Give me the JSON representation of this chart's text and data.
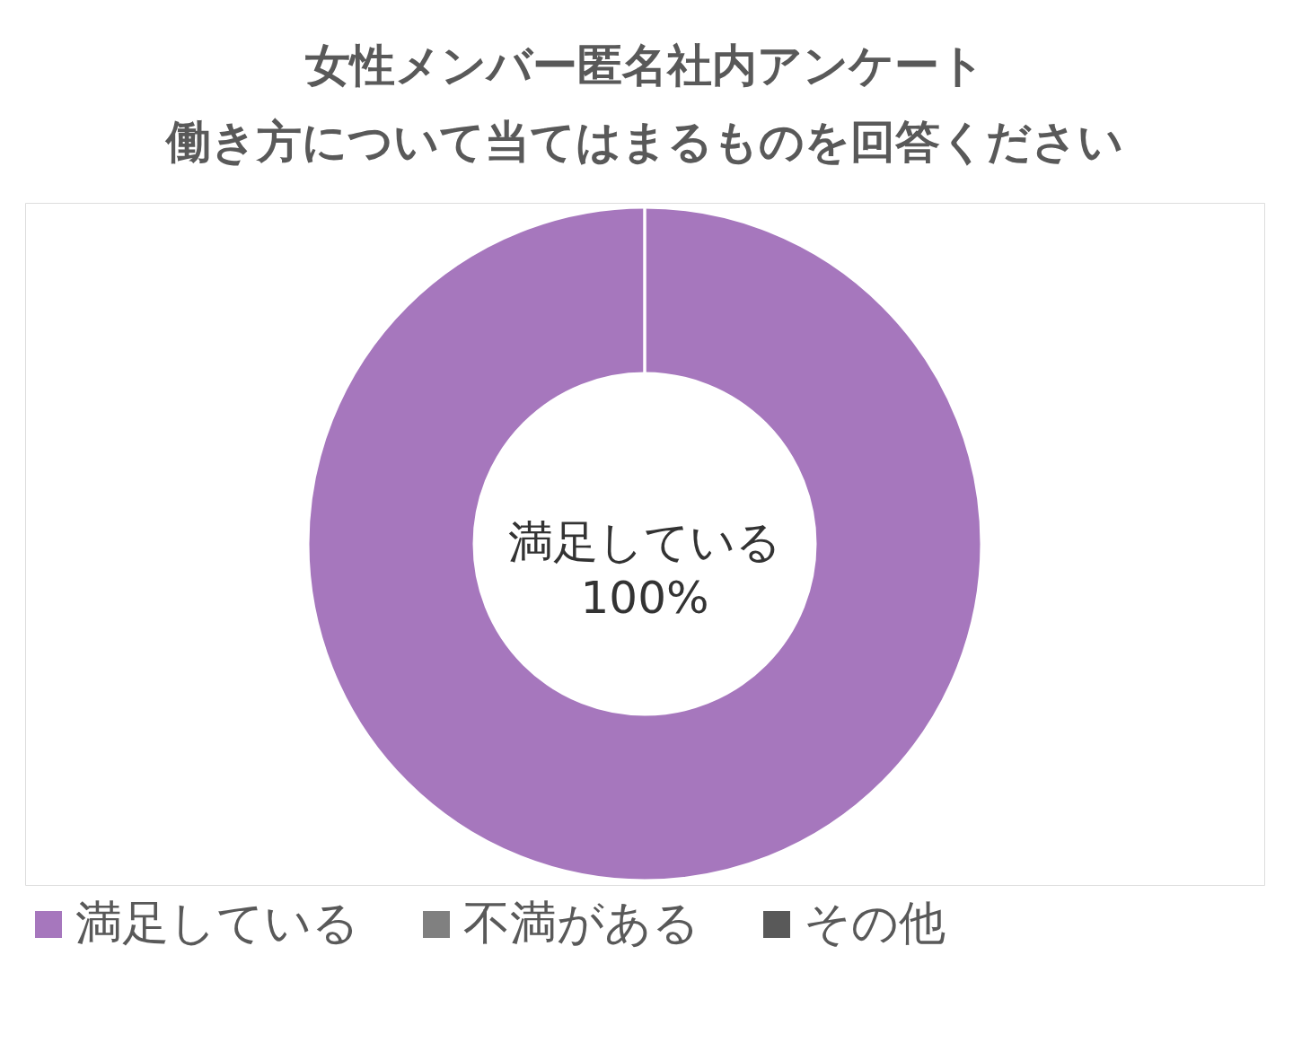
{
  "chart_data": {
    "type": "donut",
    "title": "女性メンバー匿名社内アンケート",
    "subtitle": "働き方について当てはまるものを回答ください",
    "categories": [
      "満足している",
      "不満がある",
      "その他"
    ],
    "values": [
      100,
      0,
      0
    ],
    "colors": [
      "#a677bd",
      "#808080",
      "#595959"
    ],
    "value_labels": [
      "満足している\n100%",
      null,
      null
    ],
    "legend": "bottom"
  }
}
